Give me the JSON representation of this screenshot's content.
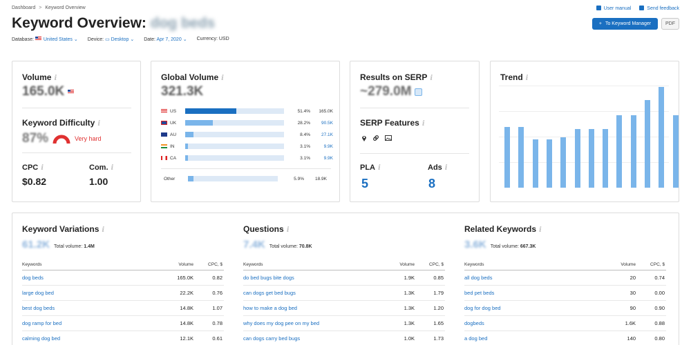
{
  "breadcrumb": {
    "home": "Dashboard",
    "sep": ">",
    "current": "Keyword Overview"
  },
  "top_links": {
    "manual": "User manual",
    "feedback": "Send feedback"
  },
  "title": {
    "prefix": "Keyword Overview:",
    "keyword": "dog beds"
  },
  "buttons": {
    "km_plus": "+",
    "keyword_manager": "To Keyword Manager",
    "pdf": "PDF"
  },
  "meta": {
    "database_label": "Database:",
    "database_value": "United States",
    "device_label": "Device:",
    "device_value": "Desktop",
    "date_label": "Date:",
    "date_value": "Apr 7, 2020",
    "currency": "Currency: USD",
    "caret": "⌄"
  },
  "volume": {
    "label": "Volume",
    "value": "165.0K"
  },
  "difficulty": {
    "label": "Keyword Difficulty",
    "value": "87%",
    "text": "Very hard",
    "color": "#e03131"
  },
  "cpc": {
    "label": "CPC",
    "value": "$0.82"
  },
  "com": {
    "label": "Com.",
    "value": "1.00"
  },
  "global_volume": {
    "label": "Global Volume",
    "value": "321.3K",
    "rows": [
      {
        "code": "US",
        "pct": "51.4%",
        "val": "165.0K",
        "share": 0.514
      },
      {
        "code": "UK",
        "pct": "28.2%",
        "val": "90.5K",
        "share": 0.282
      },
      {
        "code": "AU",
        "pct": "8.4%",
        "val": "27.1K",
        "share": 0.084
      },
      {
        "code": "IN",
        "pct": "3.1%",
        "val": "9.9K",
        "share": 0.031
      },
      {
        "code": "CA",
        "pct": "3.1%",
        "val": "9.9K",
        "share": 0.031
      }
    ],
    "other": {
      "code": "Other",
      "pct": "5.9%",
      "val": "18.9K",
      "share": 0.059
    }
  },
  "serp": {
    "label": "Results on SERP",
    "value": "~279.0M"
  },
  "serp_features": {
    "label": "SERP Features",
    "icons": [
      "location-pin-icon",
      "link-icon",
      "image-icon"
    ]
  },
  "pla": {
    "label": "PLA",
    "value": "5"
  },
  "ads": {
    "label": "Ads",
    "value": "8"
  },
  "trend": {
    "label": "Trend",
    "values": [
      0.6,
      0.6,
      0.48,
      0.48,
      0.5,
      0.58,
      0.58,
      0.58,
      0.72,
      0.72,
      0.87,
      1.0,
      0.72
    ]
  },
  "info_glyph": "i",
  "col_headers": {
    "keywords": "Keywords",
    "volume": "Volume",
    "cpc": "CPC, $"
  },
  "variations": {
    "label": "Keyword Variations",
    "count": "61.2K",
    "total_label": "Total volume:",
    "total": "1.4M",
    "rows": [
      {
        "k": "dog beds",
        "v": "165.0K",
        "c": "0.82"
      },
      {
        "k": "large dog bed",
        "v": "22.2K",
        "c": "0.76"
      },
      {
        "k": "best dog beds",
        "v": "14.8K",
        "c": "1.07"
      },
      {
        "k": "dog ramp for bed",
        "v": "14.8K",
        "c": "0.78"
      },
      {
        "k": "calming dog bed",
        "v": "12.1K",
        "c": "0.61"
      }
    ]
  },
  "questions": {
    "label": "Questions",
    "count": "7.4K",
    "total_label": "Total volume:",
    "total": "70.8K",
    "rows": [
      {
        "k": "do bed bugs bite dogs",
        "v": "1.9K",
        "c": "0.85"
      },
      {
        "k": "can dogs get bed bugs",
        "v": "1.3K",
        "c": "1.79"
      },
      {
        "k": "how to make a dog bed",
        "v": "1.3K",
        "c": "1.20"
      },
      {
        "k": "why does my dog pee on my bed",
        "v": "1.3K",
        "c": "1.65"
      },
      {
        "k": "can dogs carry bed bugs",
        "v": "1.0K",
        "c": "1.73"
      }
    ]
  },
  "related": {
    "label": "Related Keywords",
    "count": "3.6K",
    "total_label": "Total volume:",
    "total": "667.3K",
    "rows": [
      {
        "k": "all dog beds",
        "v": "20",
        "c": "0.74"
      },
      {
        "k": "bed pet beds",
        "v": "30",
        "c": "0.00"
      },
      {
        "k": "dog for dog bed",
        "v": "90",
        "c": "0.90"
      },
      {
        "k": "dogbeds",
        "v": "1.6K",
        "c": "0.88"
      },
      {
        "k": "a dog bed",
        "v": "140",
        "c": "0.80"
      }
    ]
  }
}
